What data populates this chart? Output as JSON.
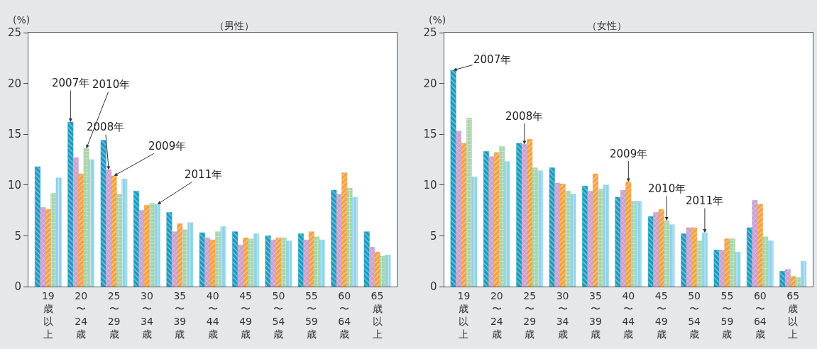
{
  "chart_data": [
    {
      "type": "bar",
      "title": "（男性）",
      "ylabel": "(%)",
      "ylim": [
        0,
        25
      ],
      "yticks": [
        0,
        5,
        10,
        15,
        20,
        25
      ],
      "categories": [
        "19歳以上",
        "20〜24歳",
        "25〜29歳",
        "30〜34歳",
        "35〜39歳",
        "40〜44歳",
        "45〜49歳",
        "50〜54歳",
        "55〜59歳",
        "60〜64歳",
        "65歳以上"
      ],
      "series": [
        {
          "name": "2007年",
          "color": "#1a9bbf",
          "values": [
            11.8,
            16.2,
            14.4,
            9.4,
            7.3,
            5.3,
            5.4,
            5.0,
            5.2,
            9.5,
            5.4
          ]
        },
        {
          "name": "2008年",
          "color": "#c9a0d0",
          "values": [
            7.8,
            12.7,
            11.5,
            7.5,
            5.4,
            4.8,
            4.1,
            4.6,
            4.6,
            9.1,
            3.9
          ]
        },
        {
          "name": "2009年",
          "color": "#f5a040",
          "values": [
            7.6,
            11.1,
            10.9,
            8.0,
            6.2,
            4.6,
            4.8,
            4.8,
            5.4,
            11.2,
            3.4
          ]
        },
        {
          "name": "2010年",
          "color": "#a8d4a8",
          "values": [
            9.2,
            13.6,
            9.1,
            8.2,
            5.6,
            5.4,
            4.7,
            4.8,
            4.9,
            9.7,
            3.0
          ]
        },
        {
          "name": "2011年",
          "color": "#8fd3e8",
          "values": [
            10.7,
            12.5,
            10.6,
            8.1,
            6.3,
            5.9,
            5.2,
            4.5,
            4.6,
            8.8,
            3.1
          ]
        }
      ]
    },
    {
      "type": "bar",
      "title": "（女性）",
      "ylabel": "(%)",
      "ylim": [
        0,
        25
      ],
      "yticks": [
        0,
        5,
        10,
        15,
        20,
        25
      ],
      "categories": [
        "19歳以上",
        "20〜24歳",
        "25〜29歳",
        "30〜34歳",
        "35〜39歳",
        "40〜44歳",
        "45〜49歳",
        "50〜54歳",
        "55〜59歳",
        "60〜64歳",
        "65歳以上"
      ],
      "series": [
        {
          "name": "2007年",
          "color": "#1a9bbf",
          "values": [
            21.3,
            13.3,
            14.1,
            11.7,
            9.9,
            8.8,
            6.9,
            5.2,
            3.6,
            5.8,
            1.5
          ]
        },
        {
          "name": "2008年",
          "color": "#c9a0d0",
          "values": [
            15.3,
            12.8,
            14.0,
            10.2,
            9.4,
            9.5,
            7.3,
            5.8,
            3.6,
            8.5,
            1.7
          ]
        },
        {
          "name": "2009年",
          "color": "#f5a040",
          "values": [
            14.1,
            13.2,
            14.5,
            10.1,
            11.1,
            10.3,
            7.6,
            5.8,
            4.7,
            8.1,
            1.0
          ]
        },
        {
          "name": "2010年",
          "color": "#a8d4a8",
          "values": [
            16.6,
            13.8,
            11.7,
            9.4,
            9.6,
            8.4,
            6.5,
            4.5,
            4.7,
            4.9,
            0.9
          ]
        },
        {
          "name": "2011年",
          "color": "#8fd3e8",
          "values": [
            10.8,
            12.3,
            11.4,
            9.1,
            10.0,
            8.4,
            6.1,
            5.3,
            3.4,
            4.5,
            2.5
          ]
        }
      ]
    }
  ]
}
